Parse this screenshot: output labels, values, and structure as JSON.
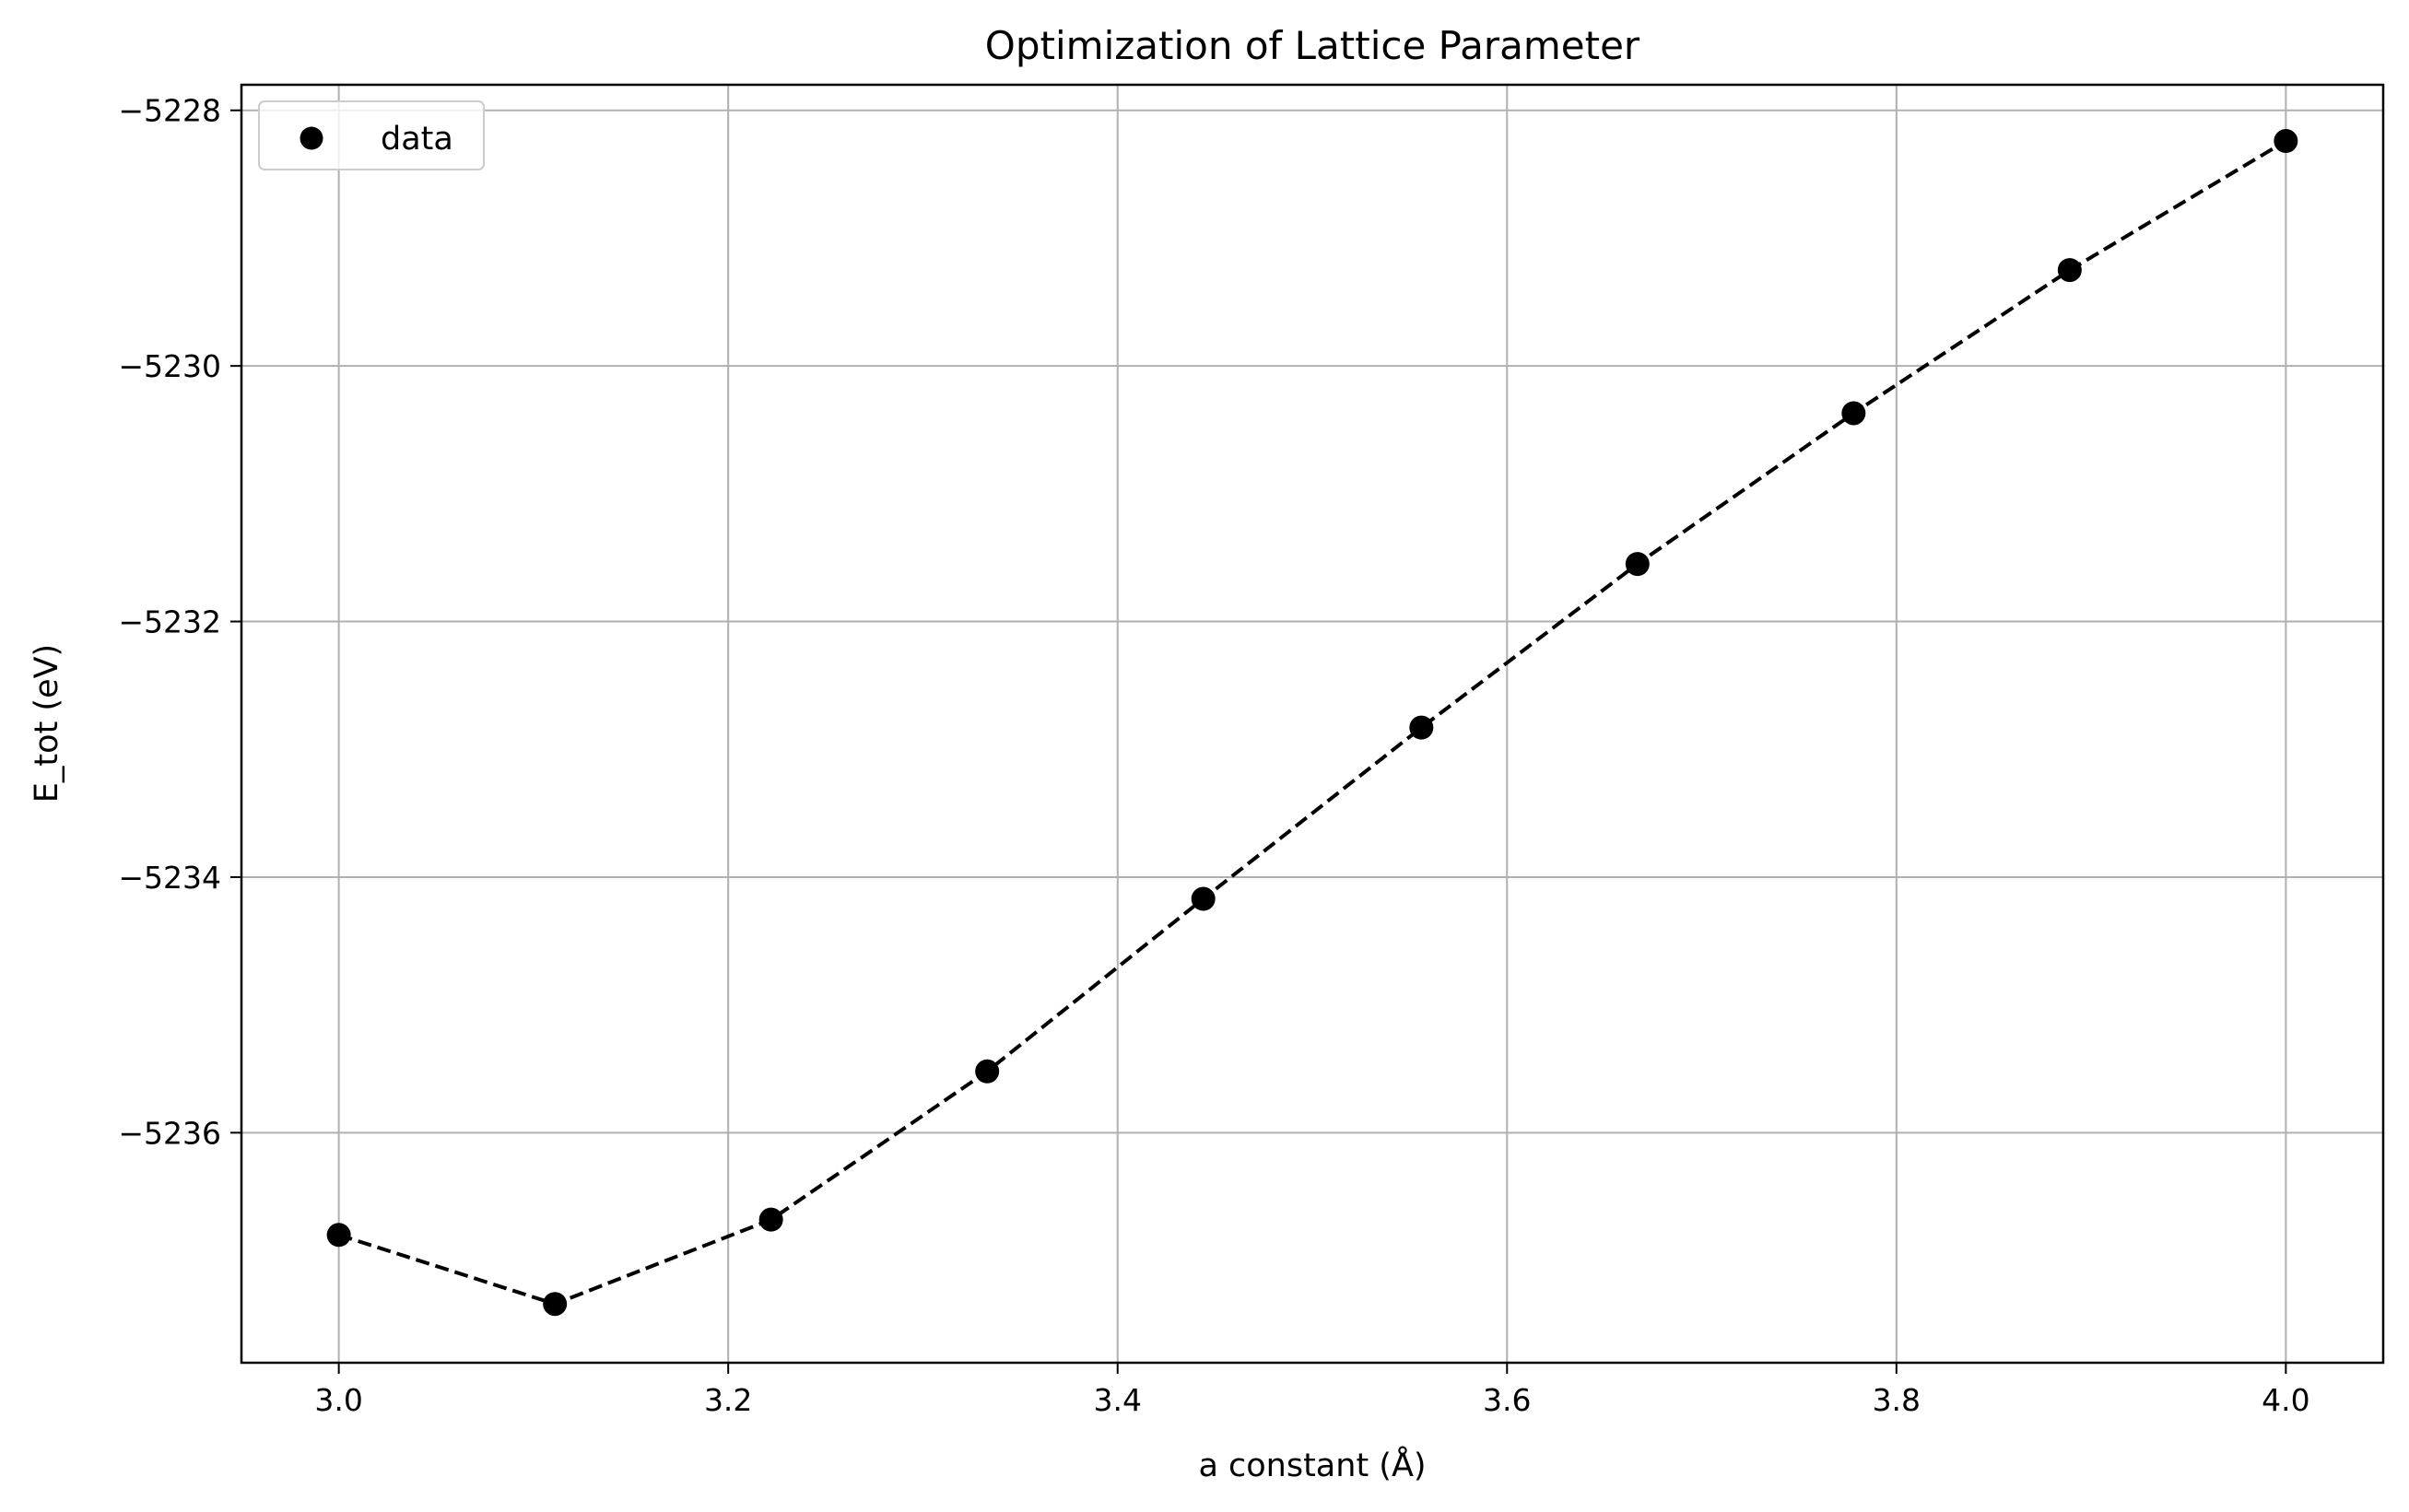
{
  "chart_data": {
    "type": "line",
    "title": "Optimization of Lattice Parameter",
    "xlabel": "a constant (Å)",
    "ylabel": "E_tot (eV)",
    "xlim": [
      2.95,
      4.05
    ],
    "ylim": [
      -5237.8,
      -5227.8
    ],
    "x_ticks": [
      3.0,
      3.2,
      3.4,
      3.6,
      3.8,
      4.0
    ],
    "x_tick_labels": [
      "3.0",
      "3.2",
      "3.4",
      "3.6",
      "3.8",
      "4.0"
    ],
    "y_ticks": [
      -5228,
      -5230,
      -5232,
      -5234,
      -5236
    ],
    "y_tick_labels": [
      "−5228",
      "−5230",
      "−5232",
      "−5234",
      "−5236"
    ],
    "grid": true,
    "legend": {
      "position": "top-left",
      "entries": [
        "data"
      ]
    },
    "series": [
      {
        "name": "data",
        "marker": "circle",
        "line_style": "dashed",
        "color": "#000000",
        "x": [
          3.0,
          3.111,
          3.222,
          3.333,
          3.444,
          3.556,
          3.667,
          3.778,
          3.889,
          4.0
        ],
        "y": [
          -5236.8,
          -5237.34,
          -5236.68,
          -5235.52,
          -5234.17,
          -5232.83,
          -5231.55,
          -5230.37,
          -5229.25,
          -5228.24
        ]
      }
    ]
  }
}
